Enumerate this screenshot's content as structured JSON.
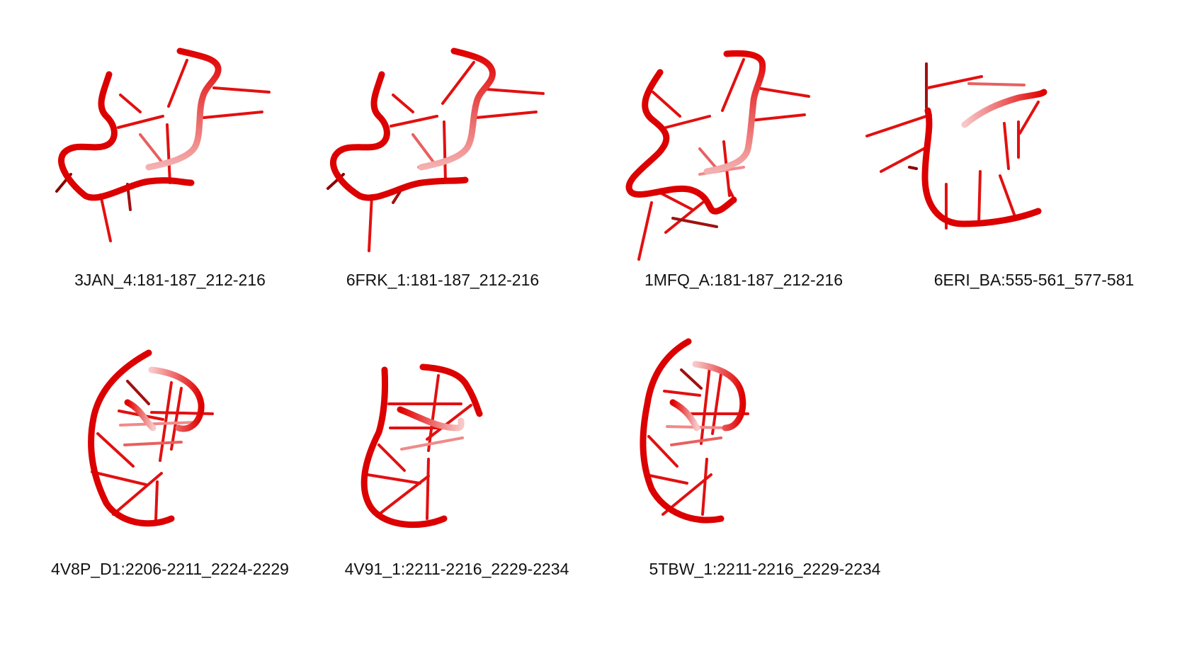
{
  "colors": {
    "strand": "#dd0000",
    "strand_dark": "#a00000",
    "base": "#e01010",
    "background": "#ffffff"
  },
  "structures": [
    {
      "label": "3JAN_4:181-187_212-216"
    },
    {
      "label": "6FRK_1:181-187_212-216"
    },
    {
      "label": "1MFQ_A:181-187_212-216"
    },
    {
      "label": "6ERI_BA:555-561_577-581"
    },
    {
      "label": "4V8P_D1:2206-2211_2224-2229"
    },
    {
      "label": "4V91_1:2211-2216_2229-2234"
    },
    {
      "label": "5TBW_1:2211-2216_2229-2234"
    }
  ]
}
